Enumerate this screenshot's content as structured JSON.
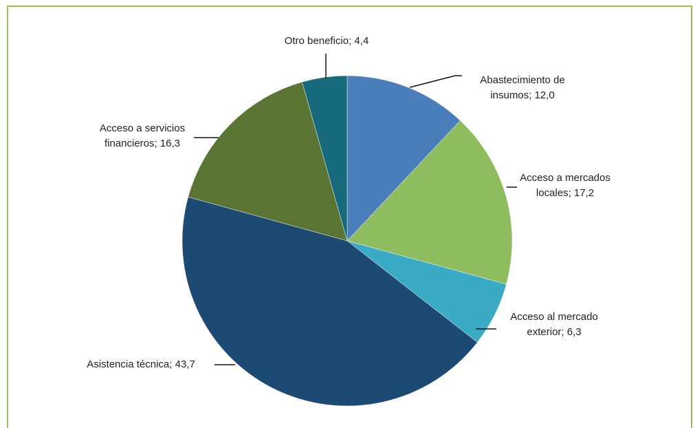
{
  "chart_data": {
    "type": "pie",
    "value_labels": [
      "Abastecimiento de\ninsumos; 12,0",
      "Acceso a mercados\nlocales; 17,2",
      "Acceso al mercado\nexterior; 6,3",
      "Asistencia técnica; 43,7",
      "Acceso a servicios\nfinancieros; 16,3",
      "Otro beneficio; 4,4"
    ],
    "values": [
      12.0,
      17.2,
      6.3,
      43.7,
      16.3,
      4.4
    ],
    "colors": [
      "#4a7ebb",
      "#8fbc5f",
      "#3aaac5",
      "#1c4a72",
      "#5a7433",
      "#176a7c"
    ]
  }
}
